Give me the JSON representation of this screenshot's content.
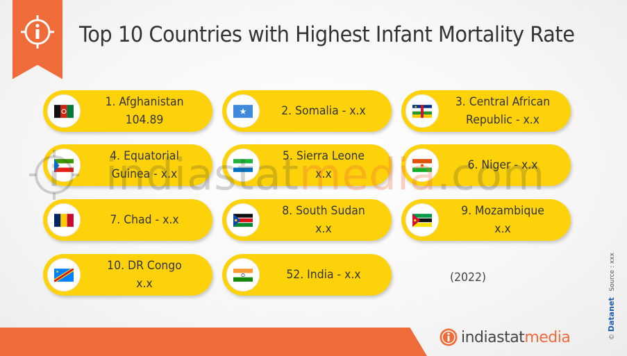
{
  "header": {
    "title": "Top 10 Countries with Highest Infant Mortality Rate"
  },
  "countries": [
    {
      "line1": "1. Afghanistan",
      "line2": "104.89"
    },
    {
      "line1": "2. Somalia  - x.x",
      "line2": ""
    },
    {
      "line1": "3. Central African",
      "line2": "Republic  - x.x"
    },
    {
      "line1": "4. Equatorial",
      "line2": "Guinea - x.x"
    },
    {
      "line1": "5. Sierra Leone",
      "line2": "x.x"
    },
    {
      "line1": "6. Niger - x.x",
      "line2": ""
    },
    {
      "line1": "7. Chad - x.x",
      "line2": ""
    },
    {
      "line1": "8. South Sudan",
      "line2": "x.x"
    },
    {
      "line1": "9. Mozambique",
      "line2": "x.x"
    },
    {
      "line1": "10. DR Congo",
      "line2": "x.x"
    },
    {
      "line1": "52. India - x.x",
      "line2": ""
    }
  ],
  "year": "(2022)",
  "watermark": {
    "part1": "indiastat",
    "part2": "media",
    "part3": ".com"
  },
  "logo": {
    "part1": "indiastat",
    "part2": "media"
  },
  "credit": {
    "brand": "Datanet",
    "source": "Source : xxx",
    "copyright": "©"
  },
  "colors": {
    "accent": "#ef6b3a",
    "pill": "#fdd20a",
    "text": "#333333"
  }
}
